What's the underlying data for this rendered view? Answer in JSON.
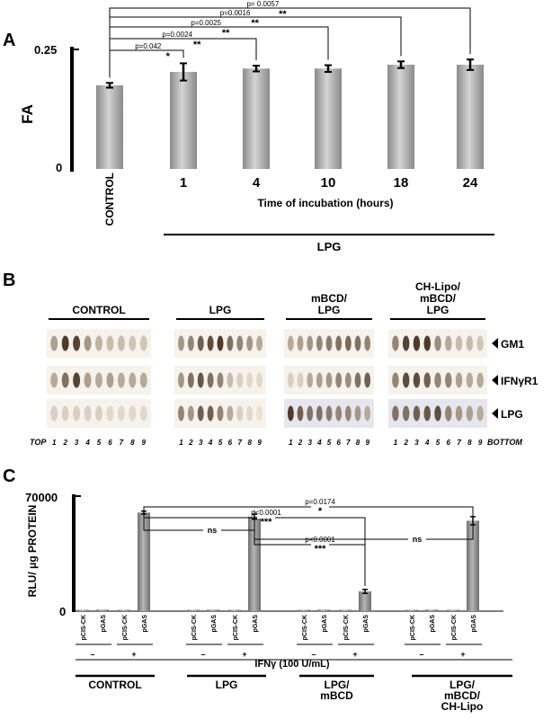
{
  "figure": {
    "panel_a": {
      "label": "A",
      "ylabel": "FA",
      "xlabel": "Time of incubation (hours)",
      "group_label": "LPG",
      "y_ticks": [
        "0.25",
        "0"
      ],
      "significance": [
        {
          "from": "CONTROL",
          "to": "1",
          "p": "p=0.042",
          "stars": "*"
        },
        {
          "from": "CONTROL",
          "to": "4",
          "p": "p=0.0024",
          "stars": "**"
        },
        {
          "from": "CONTROL",
          "to": "10",
          "p": "p=0.0025",
          "stars": "**"
        },
        {
          "from": "CONTROL",
          "to": "18",
          "p": "p=0.0016",
          "stars": "**"
        },
        {
          "from": "CONTROL",
          "to": "24",
          "p": "p= 0.0057",
          "stars": "**"
        }
      ]
    },
    "panel_b": {
      "label": "B",
      "groups": [
        {
          "name": "CONTROL"
        },
        {
          "name": "LPG"
        },
        {
          "name": "mBCD/\nLPG",
          "lines": [
            "mBCD/",
            "LPG"
          ]
        },
        {
          "name": "CH-Lipo/\nmBCD/\nLPG",
          "lines": [
            "CH-Lipo/",
            "mBCD/",
            "LPG"
          ]
        }
      ],
      "row_labels": [
        "GM1",
        "IFNγR1",
        "LPG"
      ],
      "fractions": [
        "1",
        "2",
        "3",
        "4",
        "5",
        "6",
        "7",
        "8",
        "9"
      ],
      "top_label": "TOP",
      "bottom_label": "BOTTOM",
      "dot_intensity": [
        [
          [
            0.35,
            0.9,
            0.85,
            0.4,
            0.25,
            0.2,
            0.2,
            0.15,
            0.15
          ],
          [
            0.3,
            0.6,
            0.85,
            0.35,
            0.3,
            0.35,
            0.3,
            0.3,
            0.3
          ],
          [
            0.1,
            0.1,
            0.1,
            0.1,
            0.1,
            0.05,
            0.05,
            0.05,
            0.05
          ]
        ],
        [
          [
            0.4,
            0.5,
            0.7,
            0.8,
            0.9,
            0.6,
            0.5,
            0.4,
            0.3
          ],
          [
            0.4,
            0.6,
            0.75,
            0.6,
            0.5,
            0.2,
            0.1,
            0.05,
            0.05
          ],
          [
            0.5,
            0.4,
            0.7,
            0.7,
            0.5,
            0.3,
            0.1,
            0.05,
            0.0
          ]
        ],
        [
          [
            0.3,
            0.35,
            0.4,
            0.5,
            0.55,
            0.6,
            0.65,
            0.6,
            0.5
          ],
          [
            0.1,
            0.1,
            0.3,
            0.35,
            0.4,
            0.5,
            0.45,
            0.6,
            0.7
          ],
          [
            0.9,
            0.7,
            0.6,
            0.6,
            0.55,
            0.5,
            0.5,
            0.4,
            0.3
          ]
        ],
        [
          [
            0.5,
            0.85,
            0.9,
            0.9,
            0.45,
            0.3,
            0.2,
            0.2,
            0.15
          ],
          [
            0.5,
            0.8,
            0.8,
            0.7,
            0.5,
            0.5,
            0.35,
            0.3,
            0.3
          ],
          [
            0.6,
            0.6,
            0.7,
            0.75,
            0.8,
            0.5,
            0.4,
            0.35,
            0.3
          ]
        ]
      ]
    },
    "panel_c": {
      "label": "C",
      "ylabel": "RLU/ μg PROTEIN",
      "y_ticks": [
        "70000",
        "0"
      ],
      "treatment_label": "IFNγ  (100 U/mL)",
      "minus": "–",
      "plus": "+",
      "significance": [
        {
          "p": "p=0.0174",
          "stars": "*"
        },
        {
          "p": "p<0.0001",
          "stars": "***"
        },
        {
          "p": "",
          "stars": "ns"
        },
        {
          "p": "p<0.0001",
          "stars": "***"
        },
        {
          "p": "",
          "stars": "ns"
        }
      ]
    }
  },
  "chart_data": [
    {
      "type": "bar",
      "categories": [
        "CONTROL",
        "1",
        "4",
        "10",
        "18",
        "24"
      ],
      "values": [
        0.175,
        0.203,
        0.21,
        0.21,
        0.218,
        0.218
      ],
      "errors": [
        0.005,
        0.018,
        0.006,
        0.007,
        0.007,
        0.011
      ],
      "xlabel": "Time of incubation (hours)",
      "ylabel": "FA",
      "ylim": [
        0,
        0.25
      ],
      "color": "#a9a9a9"
    },
    {
      "type": "bar",
      "categories": [
        "pCIS-CK",
        "pGAS",
        "pCIS-CK",
        "pGAS",
        "pCIS-CK",
        "pGAS",
        "pCIS-CK",
        "pGAS",
        "pCIS-CK",
        "pGAS",
        "pCIS-CK",
        "pGAS",
        "pCIS-CK",
        "pGAS",
        "pCIS-CK",
        "pGAS"
      ],
      "groups": [
        "CONTROL",
        "LPG",
        "LPG/\nmBCD",
        "LPG/\nmBCD/\nCH-Lipo"
      ],
      "ifn_gamma": [
        "–",
        "–",
        "+",
        "+",
        "–",
        "–",
        "+",
        "+",
        "–",
        "–",
        "+",
        "+",
        "–",
        "–",
        "+",
        "+"
      ],
      "values": [
        800,
        900,
        800,
        60000,
        800,
        900,
        800,
        57500,
        800,
        900,
        800,
        12000,
        800,
        900,
        800,
        55000
      ],
      "errors": [
        0,
        0,
        0,
        900,
        0,
        0,
        0,
        1500,
        0,
        0,
        0,
        1200,
        0,
        0,
        0,
        2500
      ],
      "ylabel": "RLU/ μg PROTEIN",
      "ylim": [
        0,
        70000
      ],
      "color": "#8c8c8c"
    }
  ]
}
